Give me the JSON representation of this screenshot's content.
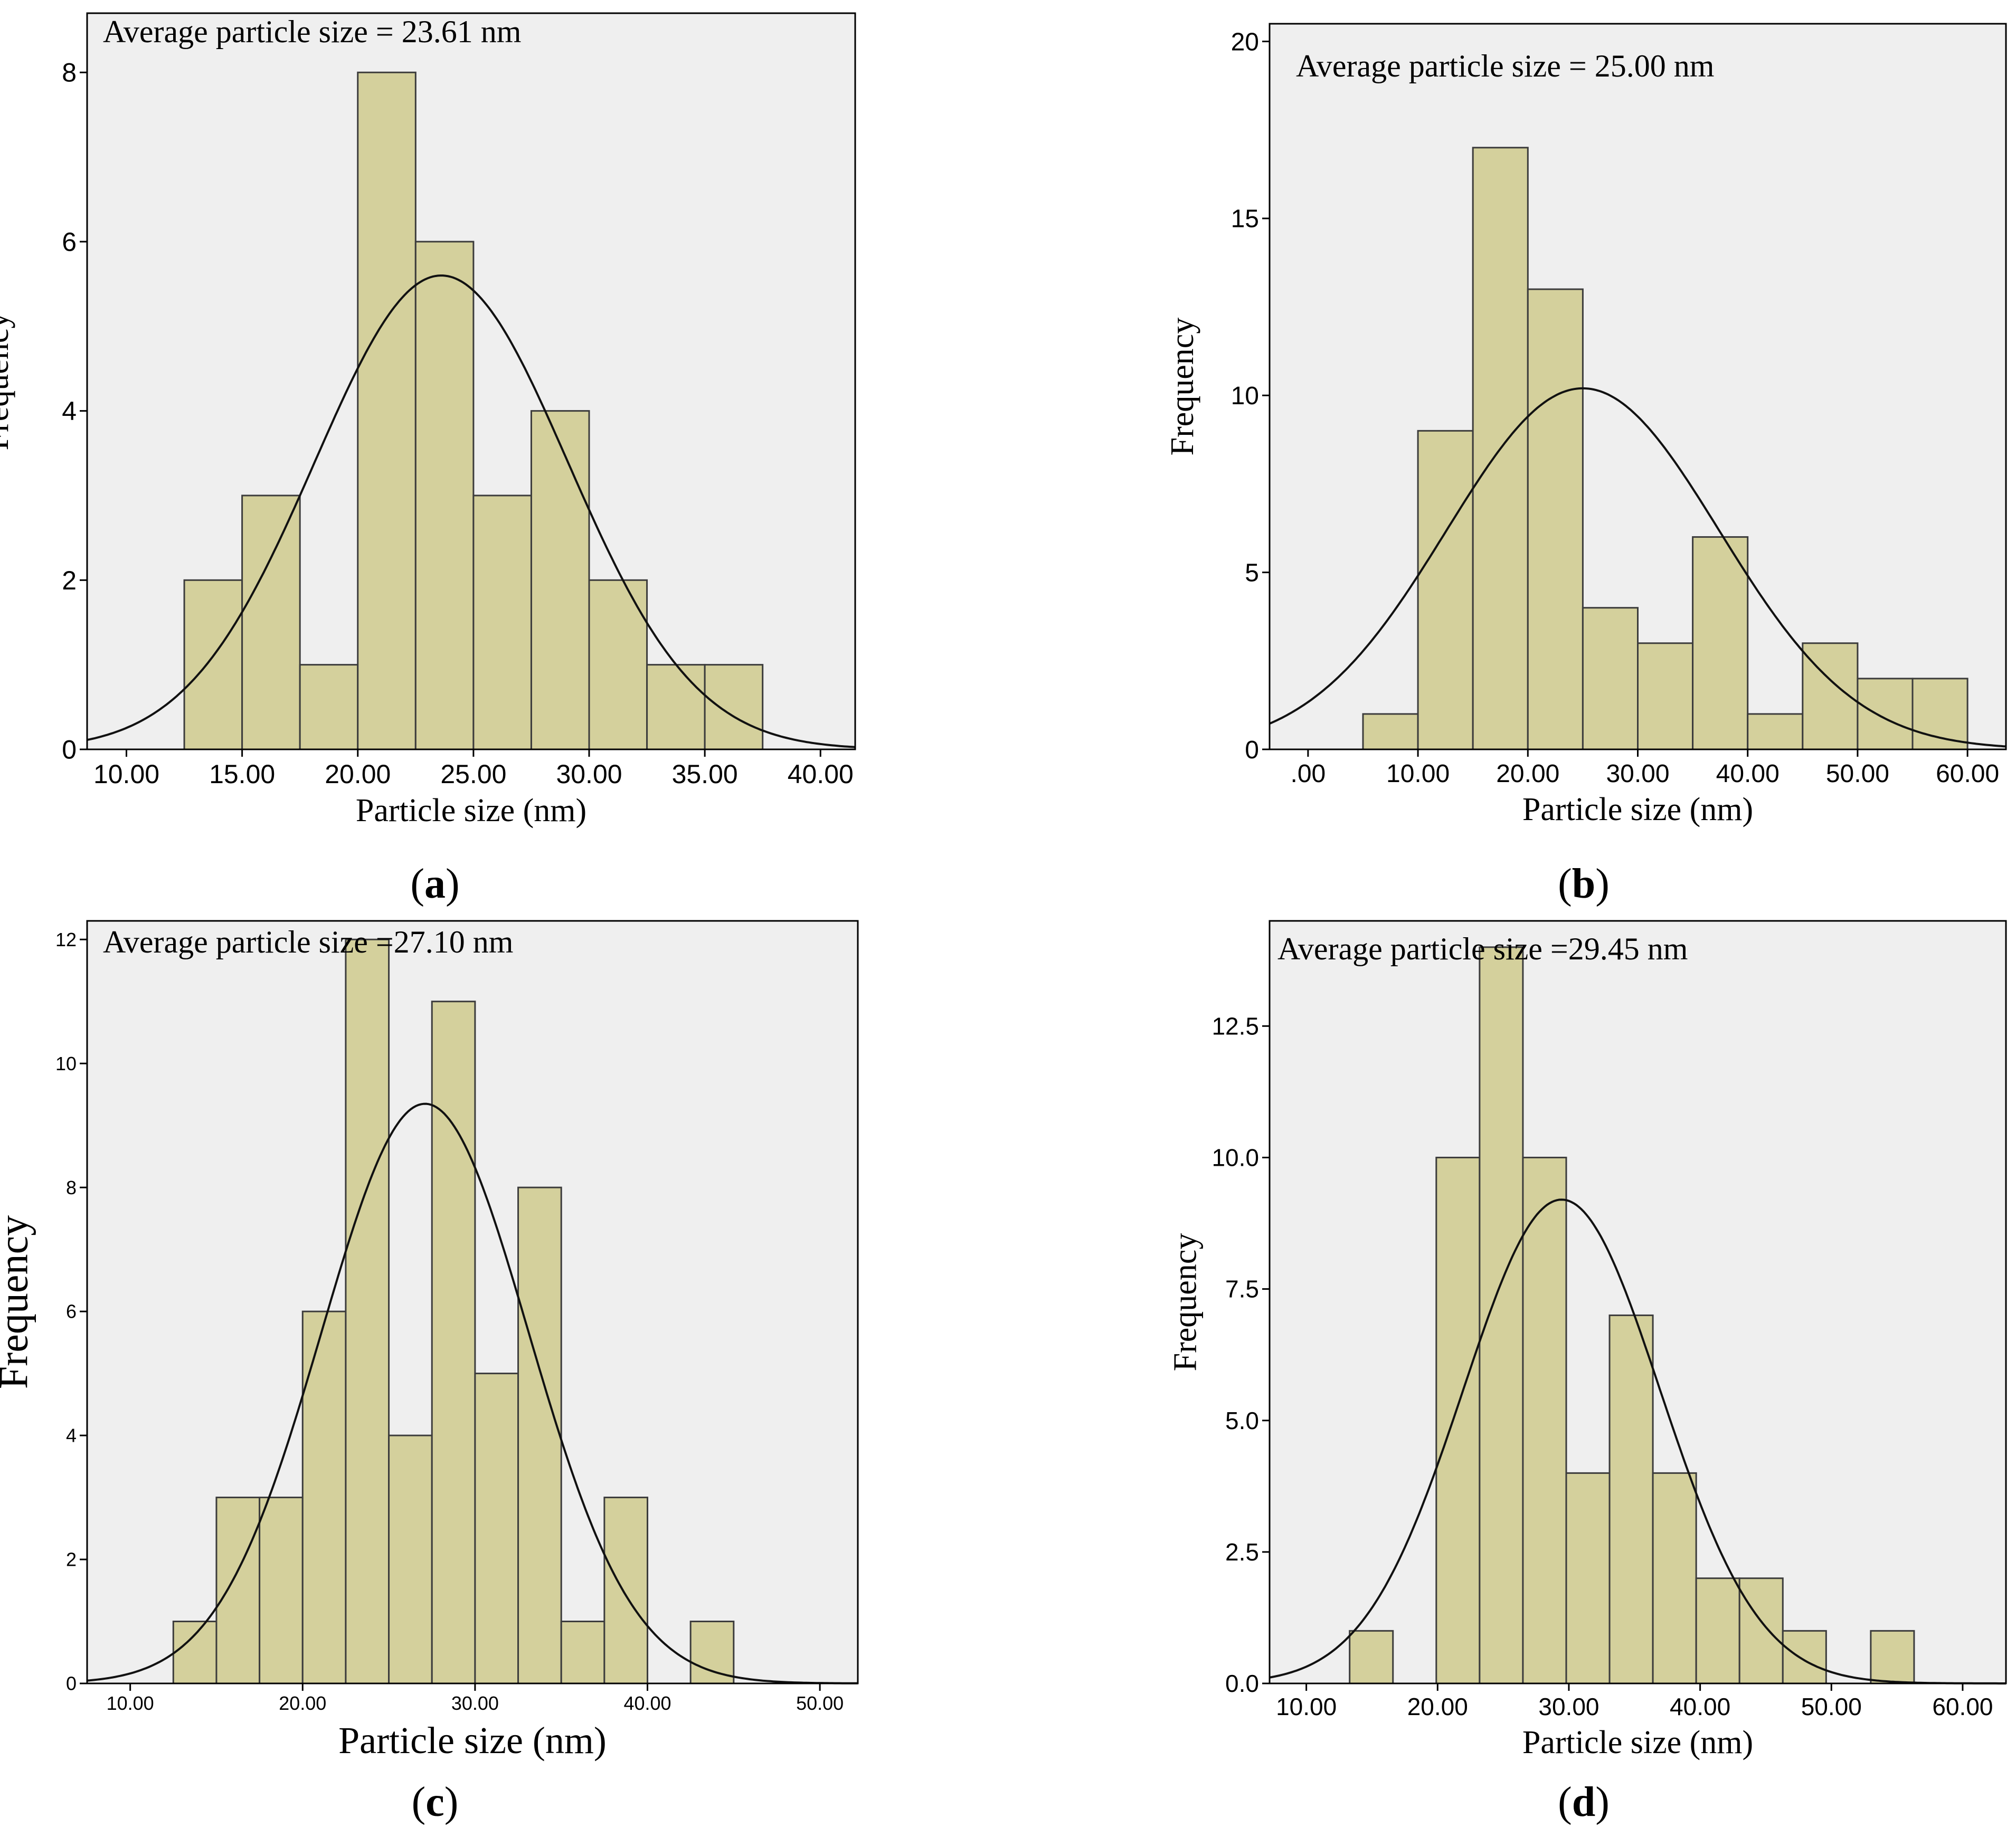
{
  "figure": {
    "panels": [
      "a",
      "b",
      "c",
      "d"
    ]
  },
  "colors": {
    "plot_background": "#efefef",
    "bar_fill": "#d4d09c",
    "bar_stroke": "#3c3c3c",
    "curve": "#111111",
    "axis": "#000000"
  },
  "chart_data": [
    {
      "id": "a",
      "type": "bar",
      "subtype": "histogram_with_normal_curve",
      "annotation": "Average particle size = 23.61 nm",
      "xlabel": "Particle size (nm)",
      "ylabel": "Frequency",
      "xlim": [
        8.3,
        41.5
      ],
      "ylim": [
        0,
        8.7
      ],
      "xticks": [
        10,
        15,
        20,
        25,
        30,
        35,
        40
      ],
      "xtick_labels": [
        "10.00",
        "15.00",
        "20.00",
        "25.00",
        "30.00",
        "35.00",
        "40.00"
      ],
      "yticks": [
        0,
        2,
        4,
        6,
        8
      ],
      "ytick_labels": [
        "0",
        "2",
        "4",
        "6",
        "8"
      ],
      "bins": [
        {
          "start": 12.5,
          "end": 15.0,
          "count": 2
        },
        {
          "start": 15.0,
          "end": 17.5,
          "count": 3
        },
        {
          "start": 17.5,
          "end": 20.0,
          "count": 1
        },
        {
          "start": 20.0,
          "end": 22.5,
          "count": 8
        },
        {
          "start": 22.5,
          "end": 25.0,
          "count": 6
        },
        {
          "start": 25.0,
          "end": 27.5,
          "count": 3
        },
        {
          "start": 27.5,
          "end": 30.0,
          "count": 4
        },
        {
          "start": 30.0,
          "end": 32.5,
          "count": 2
        },
        {
          "start": 32.5,
          "end": 35.0,
          "count": 1
        },
        {
          "start": 35.0,
          "end": 37.5,
          "count": 1
        }
      ],
      "normal_curve": {
        "mean": 23.61,
        "sd": 5.47,
        "peak": 5.6
      }
    },
    {
      "id": "b",
      "type": "bar",
      "subtype": "histogram_with_normal_curve",
      "annotation": "Average particle size = 25.00 nm",
      "xlabel": "Particle size (nm)",
      "ylabel": "Frequency",
      "xlim": [
        -3.5,
        63.5
      ],
      "ylim": [
        0,
        20.5
      ],
      "xticks": [
        0,
        10,
        20,
        30,
        40,
        50,
        60
      ],
      "xtick_labels": [
        ".00",
        "10.00",
        "20.00",
        "30.00",
        "40.00",
        "50.00",
        "60.00"
      ],
      "yticks": [
        0,
        5,
        10,
        15,
        20
      ],
      "ytick_labels": [
        "0",
        "5",
        "10",
        "15",
        "20"
      ],
      "bins": [
        {
          "start": 5,
          "end": 10,
          "count": 1
        },
        {
          "start": 10,
          "end": 15,
          "count": 9
        },
        {
          "start": 15,
          "end": 20,
          "count": 17
        },
        {
          "start": 20,
          "end": 25,
          "count": 13
        },
        {
          "start": 25,
          "end": 30,
          "count": 4
        },
        {
          "start": 30,
          "end": 35,
          "count": 3
        },
        {
          "start": 35,
          "end": 40,
          "count": 6
        },
        {
          "start": 40,
          "end": 45,
          "count": 1
        },
        {
          "start": 45,
          "end": 50,
          "count": 3
        },
        {
          "start": 50,
          "end": 55,
          "count": 2
        },
        {
          "start": 55,
          "end": 60,
          "count": 2
        }
      ],
      "normal_curve": {
        "mean": 25.0,
        "sd": 12.4,
        "peak": 10.2
      }
    },
    {
      "id": "c",
      "type": "bar",
      "subtype": "histogram_with_normal_curve",
      "annotation": "Average particle size =27.10 nm",
      "xlabel": "Particle size (nm)",
      "ylabel": "Frequency",
      "xlim": [
        7.5,
        52.2
      ],
      "ylim": [
        0,
        12.3
      ],
      "xticks": [
        10,
        20,
        30,
        40,
        50
      ],
      "xtick_labels": [
        "10.00",
        "20.00",
        "30.00",
        "40.00",
        "50.00"
      ],
      "yticks": [
        0,
        2,
        4,
        6,
        8,
        10,
        12
      ],
      "ytick_labels": [
        "0",
        "2",
        "4",
        "6",
        "8",
        "10",
        "12"
      ],
      "bins": [
        {
          "start": 12.5,
          "end": 15.0,
          "count": 1
        },
        {
          "start": 15.0,
          "end": 17.5,
          "count": 3
        },
        {
          "start": 17.5,
          "end": 20.0,
          "count": 3
        },
        {
          "start": 20.0,
          "end": 22.5,
          "count": 6
        },
        {
          "start": 22.5,
          "end": 25.0,
          "count": 12
        },
        {
          "start": 25.0,
          "end": 27.5,
          "count": 4
        },
        {
          "start": 27.5,
          "end": 30.0,
          "count": 11
        },
        {
          "start": 30.0,
          "end": 32.5,
          "count": 5
        },
        {
          "start": 32.5,
          "end": 35.0,
          "count": 8
        },
        {
          "start": 35.0,
          "end": 37.5,
          "count": 1
        },
        {
          "start": 37.5,
          "end": 40.0,
          "count": 3
        },
        {
          "start": 42.5,
          "end": 45.0,
          "count": 1
        }
      ],
      "normal_curve": {
        "mean": 27.1,
        "sd": 6.0,
        "peak": 9.35
      }
    },
    {
      "id": "d",
      "type": "bar",
      "subtype": "histogram_with_normal_curve",
      "annotation": "Average particle size =29.45 nm",
      "xlabel": "Particle size (nm)",
      "ylabel": "Frequency",
      "xlim": [
        7.2,
        63.3
      ],
      "ylim": [
        0,
        14.5
      ],
      "xticks": [
        10,
        20,
        30,
        40,
        50,
        60
      ],
      "xtick_labels": [
        "10.00",
        "20.00",
        "30.00",
        "40.00",
        "50.00",
        "60.00"
      ],
      "yticks": [
        0,
        2.5,
        5,
        7.5,
        10,
        12.5
      ],
      "ytick_labels": [
        "0.0",
        "2.5",
        "5.0",
        "7.5",
        "10.0",
        "12.5"
      ],
      "bins": [
        {
          "start": 13.3,
          "end": 16.6,
          "count": 1
        },
        {
          "start": 19.9,
          "end": 23.2,
          "count": 10
        },
        {
          "start": 23.2,
          "end": 26.5,
          "count": 14
        },
        {
          "start": 26.5,
          "end": 29.8,
          "count": 10
        },
        {
          "start": 29.8,
          "end": 33.1,
          "count": 4
        },
        {
          "start": 33.1,
          "end": 36.4,
          "count": 7
        },
        {
          "start": 36.4,
          "end": 39.7,
          "count": 4
        },
        {
          "start": 39.7,
          "end": 43.0,
          "count": 2
        },
        {
          "start": 43.0,
          "end": 46.3,
          "count": 2
        },
        {
          "start": 46.3,
          "end": 49.6,
          "count": 1
        },
        {
          "start": 53.0,
          "end": 56.3,
          "count": 1
        }
      ],
      "normal_curve": {
        "mean": 29.45,
        "sd": 7.5,
        "peak": 9.2
      }
    }
  ]
}
